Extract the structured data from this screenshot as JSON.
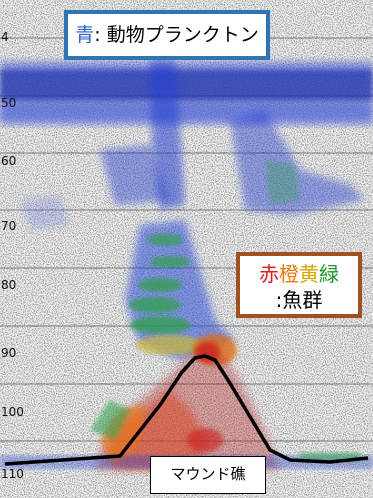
{
  "depth_scale": {
    "ticks": [
      "4",
      "50",
      "60",
      "70",
      "80",
      "90",
      "100",
      "110"
    ]
  },
  "callouts": {
    "plankton": {
      "color_word": "青",
      "text": ": 動物プランクトン",
      "color": "#2962c4"
    },
    "fish": {
      "color_words": [
        {
          "text": "赤",
          "color": "#e02020"
        },
        {
          "text": "橙",
          "color": "#f07a10"
        },
        {
          "text": "黄",
          "color": "#d4a800"
        },
        {
          "text": "緑",
          "color": "#1f9a2a"
        }
      ],
      "text": ":魚群"
    },
    "mound": {
      "text": "マウンド礁"
    }
  },
  "colors": {
    "plankton_blue": "#1f3fd4",
    "plankton_box_border": "#2e75b6",
    "fish_box_border": "#a0521e",
    "mound_outline": "#000000"
  }
}
